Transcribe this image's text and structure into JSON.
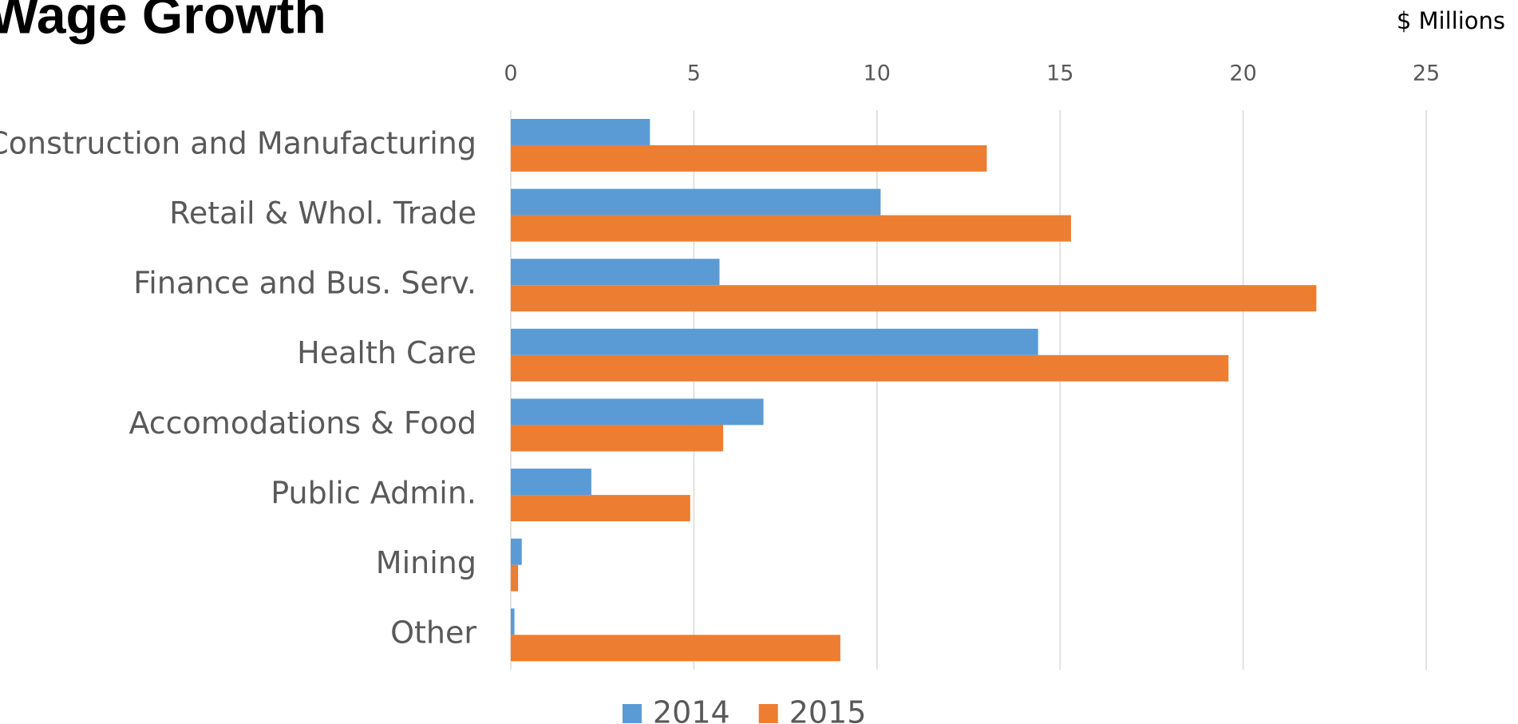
{
  "chart_data": {
    "type": "bar",
    "orientation": "horizontal",
    "title": "Wage Growth",
    "unit_label": "$ Millions",
    "categories": [
      "Construction and Manufacturing",
      "Retail & Whol. Trade",
      "Finance and Bus. Serv.",
      "Health Care",
      "Accomodations & Food",
      "Public Admin.",
      "Mining",
      "Other"
    ],
    "series": [
      {
        "name": "2014",
        "color": "#5b9bd5",
        "values": [
          3.8,
          10.1,
          5.7,
          14.4,
          6.9,
          2.2,
          0.3,
          0.1
        ]
      },
      {
        "name": "2015",
        "color": "#ed7d31",
        "values": [
          13.0,
          15.3,
          22.0,
          19.6,
          5.8,
          4.9,
          0.2,
          9.0
        ]
      }
    ],
    "xlim": [
      0,
      25
    ],
    "xticks": [
      0,
      5,
      10,
      15,
      20,
      25
    ],
    "grid": true,
    "legend": "bottom"
  }
}
